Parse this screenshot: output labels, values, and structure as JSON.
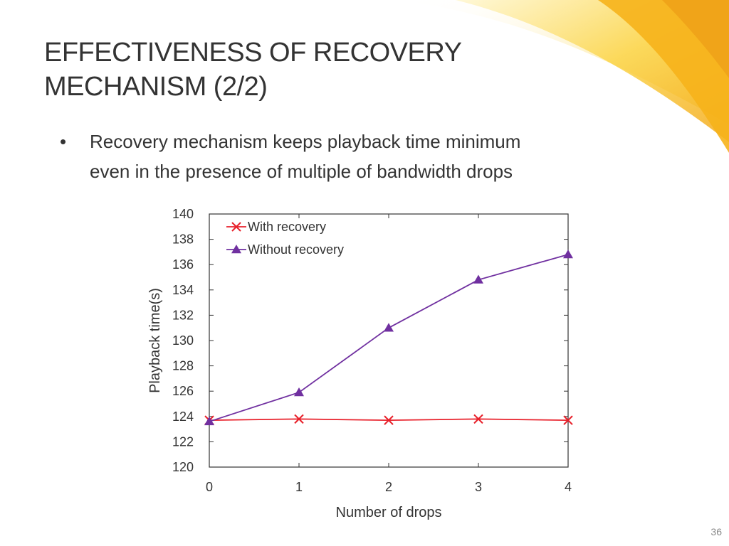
{
  "slide": {
    "title_lines": [
      "EFFECTIVENESS OF RECOVERY",
      "MECHANISM (2/2)"
    ],
    "bullets": [
      {
        "marker": "•",
        "lines": [
          "Recovery mechanism keeps playback time minimum",
          "even in the presence of multiple of bandwidth drops"
        ]
      }
    ],
    "page_number": "36",
    "colors": {
      "title": "#333333",
      "swoosh_yellow": "#f7c21a",
      "swoosh_orange": "#f0a419"
    }
  },
  "chart_data": {
    "type": "line",
    "title": "",
    "xlabel": "Number of drops",
    "ylabel": "Playback time(s)",
    "x": [
      0,
      1,
      2,
      3,
      4
    ],
    "xticks": [
      "0",
      "1",
      "2",
      "3",
      "4"
    ],
    "xlim": [
      0,
      4
    ],
    "ylim": [
      120,
      140
    ],
    "yticks": [
      "120",
      "122",
      "124",
      "126",
      "128",
      "130",
      "132",
      "134",
      "136",
      "138",
      "140"
    ],
    "grid": false,
    "legend_position": "top-left",
    "series": [
      {
        "name": "With recovery",
        "marker": "x",
        "color": "#e8212b",
        "values": [
          123.7,
          123.8,
          123.7,
          123.8,
          123.7
        ]
      },
      {
        "name": "Without recovery",
        "marker": "triangle",
        "color": "#7030a0",
        "values": [
          123.6,
          125.9,
          131.0,
          134.8,
          136.8
        ]
      }
    ]
  }
}
